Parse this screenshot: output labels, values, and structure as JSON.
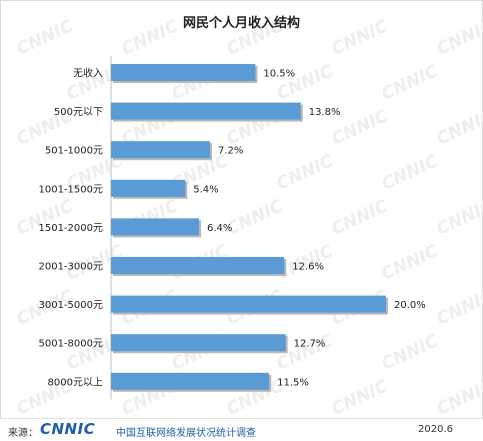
{
  "chart_data": {
    "type": "bar",
    "orientation": "horizontal",
    "title": "网民个人月收入结构",
    "categories": [
      "无收入",
      "500元以下",
      "501-1000元",
      "1001-1500元",
      "1501-2000元",
      "2001-3000元",
      "3001-5000元",
      "5001-8000元",
      "8000元以上"
    ],
    "values": [
      10.5,
      13.8,
      7.2,
      5.4,
      6.4,
      12.6,
      20.0,
      12.7,
      11.5
    ],
    "value_labels": [
      "10.5%",
      "13.8%",
      "7.2%",
      "5.4%",
      "6.4%",
      "12.6%",
      "20.0%",
      "12.7%",
      "11.5%"
    ],
    "value_unit": "%",
    "xlim": [
      0,
      20.0
    ],
    "grid": false,
    "bar_color": "#5b9bd5"
  },
  "watermark": {
    "text": "CNNIC"
  },
  "footer": {
    "source_label": "来源：",
    "logo_text": "CNNIC",
    "organization": "中国互联网络发展状况统计调查",
    "date": "2020.6"
  }
}
